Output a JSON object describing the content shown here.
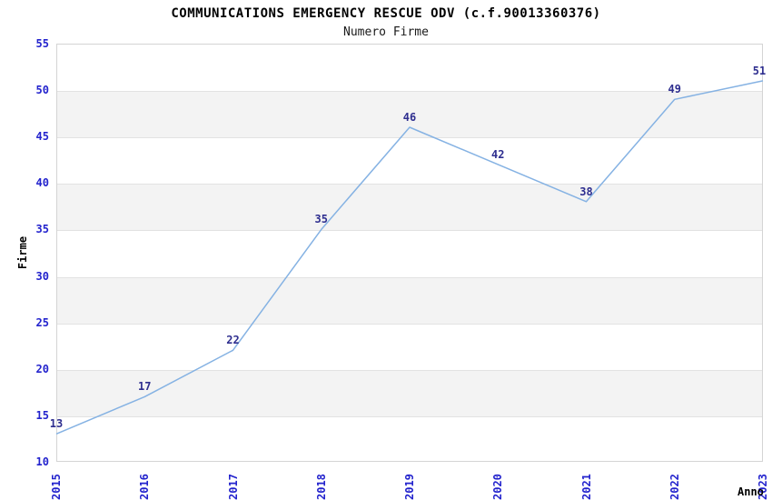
{
  "chart_data": {
    "type": "line",
    "title": "COMMUNICATIONS EMERGENCY RESCUE ODV (c.f.90013360376)",
    "subtitle": "Numero Firme",
    "xlabel": "Anno",
    "ylabel": "Firme",
    "x": [
      2015,
      2016,
      2017,
      2018,
      2019,
      2020,
      2021,
      2022,
      2023
    ],
    "series": [
      {
        "name": "Numero Firme",
        "values": [
          13,
          17,
          22,
          35,
          46,
          42,
          38,
          49,
          51
        ]
      }
    ],
    "yticks": [
      10,
      15,
      20,
      25,
      30,
      35,
      40,
      45,
      50,
      55
    ],
    "ylim": [
      10,
      55
    ],
    "grid": "horizontal-bands-alternating",
    "legend_position": "none",
    "data_labels_visible": true,
    "colors": {
      "line": "#85B2E3",
      "tick_label": "#2323CD",
      "data_label": "#2E2E8F",
      "band_fill": "#F3F3F3",
      "gridline": "#E2E2E2",
      "plot_border": "#D4D4D4",
      "title": "#000000",
      "background": "#FFFFFF"
    }
  }
}
